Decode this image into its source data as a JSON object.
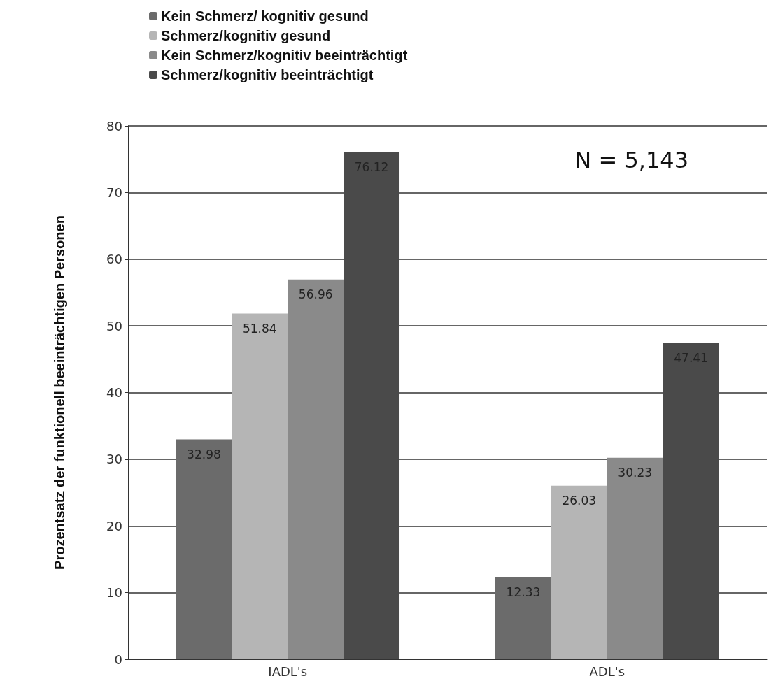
{
  "chart_data": {
    "type": "bar",
    "ylabel": "Prozentsatz der funktionell beeinträchtigen Personen",
    "categories": [
      "IADL's",
      "ADL's"
    ],
    "series": [
      {
        "name": "Kein Schmerz/ kognitiv gesund",
        "color": "#6b6b6b",
        "values": [
          32.98,
          12.33
        ]
      },
      {
        "name": "Schmerz/kognitiv gesund",
        "color": "#b5b5b5",
        "values": [
          51.84,
          26.03
        ]
      },
      {
        "name": "Kein Schmerz/kognitiv beeinträchtigt",
        "color": "#8a8a8a",
        "values": [
          56.96,
          30.23
        ]
      },
      {
        "name": "Schmerz/kognitiv beeinträchtigt",
        "color": "#4a4a4a",
        "values": [
          76.12,
          47.41
        ]
      }
    ],
    "ylim": [
      0,
      80
    ],
    "yticks": [
      0,
      10,
      20,
      30,
      40,
      50,
      60,
      70,
      80
    ],
    "grid": "y",
    "legend": "top left",
    "data_labels": true,
    "annotations": [
      "N = 5,143"
    ]
  }
}
